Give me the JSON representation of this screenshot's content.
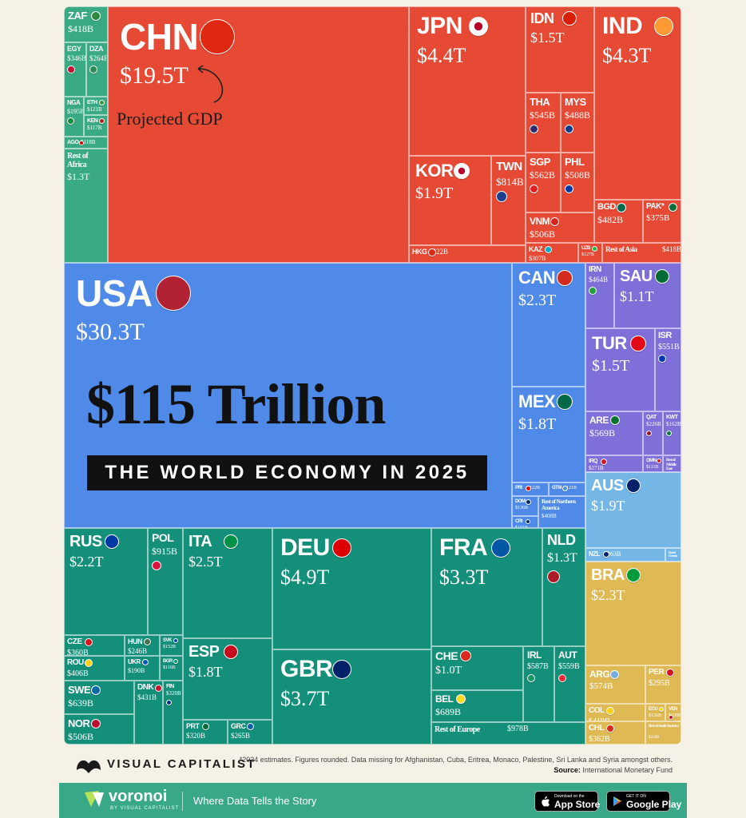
{
  "chart_data": {
    "type": "treemap",
    "title": "$115 Trillion",
    "subtitle": "THE WORLD ECONOMY IN 2025",
    "annotation": "Projected GDP",
    "regions": [
      {
        "name": "Africa",
        "color": "#3aaa85"
      },
      {
        "name": "Asia",
        "color": "#e64a35"
      },
      {
        "name": "North America",
        "color": "#4f8ae8"
      },
      {
        "name": "Middle East",
        "color": "#7f6fd9"
      },
      {
        "name": "Oceania",
        "color": "#74b6e6"
      },
      {
        "name": "Europe",
        "color": "#14907a"
      },
      {
        "name": "South America",
        "color": "#dfb953"
      }
    ],
    "countries": [
      {
        "code": "ZAF",
        "value": "$418B",
        "value_usd_b": 418,
        "region": "Africa"
      },
      {
        "code": "EGY",
        "value": "$346B",
        "value_usd_b": 346,
        "region": "Africa"
      },
      {
        "code": "DZA",
        "value": "$264B",
        "value_usd_b": 264,
        "region": "Africa"
      },
      {
        "code": "NGA",
        "value": "$195B",
        "value_usd_b": 195,
        "region": "Africa"
      },
      {
        "code": "ETH",
        "value": "$121B",
        "value_usd_b": 121,
        "region": "Africa"
      },
      {
        "code": "KEN",
        "value": "$117B",
        "value_usd_b": 117,
        "region": "Africa"
      },
      {
        "code": "AGO",
        "value": "$118B",
        "value_usd_b": 118,
        "region": "Africa"
      },
      {
        "code": "Rest of Africa",
        "value": "$1.3T",
        "value_usd_b": 1300,
        "region": "Africa"
      },
      {
        "code": "CHN",
        "value": "$19.5T",
        "value_usd_b": 19500,
        "region": "Asia"
      },
      {
        "code": "JPN",
        "value": "$4.4T",
        "value_usd_b": 4400,
        "region": "Asia"
      },
      {
        "code": "IDN",
        "value": "$1.5T",
        "value_usd_b": 1500,
        "region": "Asia"
      },
      {
        "code": "IND",
        "value": "$4.3T",
        "value_usd_b": 4300,
        "region": "Asia"
      },
      {
        "code": "THA",
        "value": "$545B",
        "value_usd_b": 545,
        "region": "Asia"
      },
      {
        "code": "MYS",
        "value": "$488B",
        "value_usd_b": 488,
        "region": "Asia"
      },
      {
        "code": "KOR",
        "value": "$1.9T",
        "value_usd_b": 1900,
        "region": "Asia"
      },
      {
        "code": "TWN",
        "value": "$814B",
        "value_usd_b": 814,
        "region": "Asia"
      },
      {
        "code": "SGP",
        "value": "$562B",
        "value_usd_b": 562,
        "region": "Asia"
      },
      {
        "code": "PHL",
        "value": "$508B",
        "value_usd_b": 508,
        "region": "Asia"
      },
      {
        "code": "VNM",
        "value": "$506B",
        "value_usd_b": 506,
        "region": "Asia"
      },
      {
        "code": "BGD",
        "value": "$482B",
        "value_usd_b": 482,
        "region": "Asia"
      },
      {
        "code": "PAK*",
        "value": "$375B",
        "value_usd_b": 375,
        "region": "Asia"
      },
      {
        "code": "HKG",
        "value": "$422B",
        "value_usd_b": 422,
        "region": "Asia"
      },
      {
        "code": "KAZ",
        "value": "$307B",
        "value_usd_b": 307,
        "region": "Asia"
      },
      {
        "code": "UZB",
        "value": "$127B",
        "value_usd_b": 127,
        "region": "Asia"
      },
      {
        "code": "Rest of Asia",
        "value": "$418B",
        "value_usd_b": 418,
        "region": "Asia"
      },
      {
        "code": "USA",
        "value": "$30.3T",
        "value_usd_b": 30300,
        "region": "North America"
      },
      {
        "code": "CAN",
        "value": "$2.3T",
        "value_usd_b": 2300,
        "region": "North America"
      },
      {
        "code": "MEX",
        "value": "$1.8T",
        "value_usd_b": 1800,
        "region": "North America"
      },
      {
        "code": "PRI",
        "value": "$122B",
        "value_usd_b": 122,
        "region": "North America"
      },
      {
        "code": "GTM",
        "value": "$121B",
        "value_usd_b": 121,
        "region": "North America"
      },
      {
        "code": "DOM",
        "value": "$136B",
        "value_usd_b": 136,
        "region": "North America"
      },
      {
        "code": "CRI",
        "value": "$101B",
        "value_usd_b": 101,
        "region": "North America"
      },
      {
        "code": "Rest of Northern America",
        "value": "$408B",
        "value_usd_b": 408,
        "region": "North America"
      },
      {
        "code": "IRN",
        "value": "$464B",
        "value_usd_b": 464,
        "region": "Middle East"
      },
      {
        "code": "SAU",
        "value": "$1.1T",
        "value_usd_b": 1100,
        "region": "Middle East"
      },
      {
        "code": "TUR",
        "value": "$1.5T",
        "value_usd_b": 1500,
        "region": "Middle East"
      },
      {
        "code": "ISR",
        "value": "$551B",
        "value_usd_b": 551,
        "region": "Middle East"
      },
      {
        "code": "ARE",
        "value": "$569B",
        "value_usd_b": 569,
        "region": "Middle East"
      },
      {
        "code": "QAT",
        "value": "$226B",
        "value_usd_b": 226,
        "region": "Middle East"
      },
      {
        "code": "KWT",
        "value": "$162B",
        "value_usd_b": 162,
        "region": "Middle East"
      },
      {
        "code": "IRQ",
        "value": "$271B",
        "value_usd_b": 271,
        "region": "Middle East"
      },
      {
        "code": "OMN",
        "value": "$111B",
        "value_usd_b": 111,
        "region": "Middle East"
      },
      {
        "code": "Rest of Middle East",
        "value": "$122B",
        "value_usd_b": 122,
        "region": "Middle East"
      },
      {
        "code": "AUS",
        "value": "$1.9T",
        "value_usd_b": 1900,
        "region": "Oceania"
      },
      {
        "code": "NZL",
        "value": "$263B",
        "value_usd_b": 263,
        "region": "Oceania"
      },
      {
        "code": "Rest of Oceania",
        "value": "$41B",
        "value_usd_b": 41,
        "region": "Oceania"
      },
      {
        "code": "RUS",
        "value": "$2.2T",
        "value_usd_b": 2200,
        "region": "Europe"
      },
      {
        "code": "POL",
        "value": "$915B",
        "value_usd_b": 915,
        "region": "Europe"
      },
      {
        "code": "ITA",
        "value": "$2.5T",
        "value_usd_b": 2500,
        "region": "Europe"
      },
      {
        "code": "DEU",
        "value": "$4.9T",
        "value_usd_b": 4900,
        "region": "Europe"
      },
      {
        "code": "FRA",
        "value": "$3.3T",
        "value_usd_b": 3300,
        "region": "Europe"
      },
      {
        "code": "NLD",
        "value": "$1.3T",
        "value_usd_b": 1300,
        "region": "Europe"
      },
      {
        "code": "CZE",
        "value": "$360B",
        "value_usd_b": 360,
        "region": "Europe"
      },
      {
        "code": "HUN",
        "value": "$246B",
        "value_usd_b": 246,
        "region": "Europe"
      },
      {
        "code": "SVK",
        "value": "$152B",
        "value_usd_b": 152,
        "region": "Europe"
      },
      {
        "code": "ROU",
        "value": "$406B",
        "value_usd_b": 406,
        "region": "Europe"
      },
      {
        "code": "UKR",
        "value": "$190B",
        "value_usd_b": 190,
        "region": "Europe"
      },
      {
        "code": "BGR",
        "value": "$116B",
        "value_usd_b": 116,
        "region": "Europe"
      },
      {
        "code": "ESP",
        "value": "$1.8T",
        "value_usd_b": 1800,
        "region": "Europe"
      },
      {
        "code": "GBR",
        "value": "$3.7T",
        "value_usd_b": 3700,
        "region": "Europe"
      },
      {
        "code": "CHE",
        "value": "$1.0T",
        "value_usd_b": 1000,
        "region": "Europe"
      },
      {
        "code": "IRL",
        "value": "$587B",
        "value_usd_b": 587,
        "region": "Europe"
      },
      {
        "code": "AUT",
        "value": "$559B",
        "value_usd_b": 559,
        "region": "Europe"
      },
      {
        "code": "BEL",
        "value": "$689B",
        "value_usd_b": 689,
        "region": "Europe"
      },
      {
        "code": "Rest of Europe",
        "value": "$978B",
        "value_usd_b": 978,
        "region": "Europe"
      },
      {
        "code": "SWE",
        "value": "$639B",
        "value_usd_b": 639,
        "region": "Europe"
      },
      {
        "code": "DNK",
        "value": "$431B",
        "value_usd_b": 431,
        "region": "Europe"
      },
      {
        "code": "FIN",
        "value": "$320B",
        "value_usd_b": 320,
        "region": "Europe"
      },
      {
        "code": "NOR",
        "value": "$506B",
        "value_usd_b": 506,
        "region": "Europe"
      },
      {
        "code": "PRT",
        "value": "$320B",
        "value_usd_b": 320,
        "region": "Europe"
      },
      {
        "code": "GRC",
        "value": "$265B",
        "value_usd_b": 265,
        "region": "Europe"
      },
      {
        "code": "BRA",
        "value": "$2.3T",
        "value_usd_b": 2300,
        "region": "South America"
      },
      {
        "code": "ARG",
        "value": "$574B",
        "value_usd_b": 574,
        "region": "South America"
      },
      {
        "code": "PER",
        "value": "$295B",
        "value_usd_b": 295,
        "region": "South America"
      },
      {
        "code": "COL",
        "value": "$419B",
        "value_usd_b": 419,
        "region": "South America"
      },
      {
        "code": "ECU",
        "value": "$126B",
        "value_usd_b": 126,
        "region": "South America"
      },
      {
        "code": "VEN",
        "value": "$108B",
        "value_usd_b": 108,
        "region": "South America"
      },
      {
        "code": "CHL",
        "value": "$362B",
        "value_usd_b": 362,
        "region": "South America"
      },
      {
        "code": "Rest of South America",
        "value": "$218B",
        "value_usd_b": 218,
        "region": "South America"
      }
    ]
  },
  "footer": {
    "brand": "VISUAL CAPITALIST",
    "footnote": "*2024 estimates. Figures rounded. Data missing for Afghanistan, Cuba, Eritrea, Monaco, Palestine, Sri Lanka and Syria amongst others.",
    "source_label": "Source:",
    "source_text": "International Monetary Fund"
  },
  "banner": {
    "brand": "voronoi",
    "brand_sub": "BY VISUAL CAPITALIST",
    "tagline": "Where Data Tells the Story",
    "app_store_small": "Download on the",
    "app_store": "App Store",
    "play_small": "GET IT ON",
    "play": "Google Play"
  },
  "colors": {
    "africa": "#3aaa85",
    "asia": "#e64a35",
    "north_america": "#4f8ae8",
    "middle_east": "#7f6fd9",
    "oceania": "#74b6e6",
    "europe": "#14907a",
    "south_america": "#dfb953",
    "banner": "#39a889",
    "background": "#f6f1e7"
  }
}
